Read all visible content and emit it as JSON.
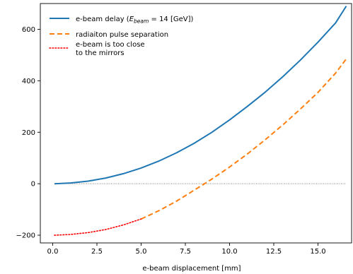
{
  "chart_data": {
    "type": "line",
    "title": "",
    "xlabel": "e-beam displacement [mm]",
    "ylabel": "",
    "xlim": [
      -0.7,
      16.9
    ],
    "ylim": [
      -230,
      700
    ],
    "x_ticks": [
      0.0,
      2.5,
      5.0,
      7.5,
      10.0,
      12.5,
      15.0
    ],
    "x_tick_labels": [
      "0.0",
      "2.5",
      "5.0",
      "7.5",
      "10.0",
      "12.5",
      "15.0"
    ],
    "y_ticks": [
      -200,
      0,
      200,
      400,
      600
    ],
    "y_tick_labels": [
      "−200",
      "0",
      "200",
      "400",
      "600"
    ],
    "grid": false,
    "legend_position": "upper-left",
    "reference_line": {
      "y": 0,
      "style": "dotted",
      "color": "#555555"
    },
    "series": [
      {
        "name": "e-beam delay (E_beam = 14 [GeV])",
        "label_parts": {
          "prefix": "e-beam delay (",
          "italic_main": "E",
          "subscript": "beam",
          "suffix": " = 14 [GeV])"
        },
        "color": "#1f77b4",
        "style": "solid",
        "x": [
          0.1,
          1.0,
          2.0,
          3.0,
          4.0,
          5.0,
          6.0,
          7.0,
          8.0,
          9.0,
          10.0,
          11.0,
          12.0,
          13.0,
          14.0,
          15.0,
          16.0,
          16.6
        ],
        "y": [
          0,
          3,
          10,
          22,
          39,
          61,
          88,
          120,
          157,
          200,
          248,
          300,
          355,
          415,
          480,
          550,
          625,
          690
        ]
      },
      {
        "name": "radiaiton pulse separation",
        "color": "#ff7f0e",
        "style": "dashed",
        "x": [
          5.0,
          6.0,
          7.0,
          8.0,
          9.0,
          10.0,
          11.0,
          12.0,
          13.0,
          14.0,
          15.0,
          16.0,
          16.6
        ],
        "y": [
          -137,
          -105,
          -68,
          -25,
          18,
          65,
          115,
          170,
          228,
          290,
          355,
          430,
          485
        ]
      },
      {
        "name": "e-beam is too close\nto the mirrors",
        "color": "#ff0000",
        "style": "dotted",
        "x": [
          0.1,
          1.0,
          2.0,
          3.0,
          4.0,
          5.0
        ],
        "y": [
          -200,
          -197,
          -190,
          -178,
          -160,
          -137
        ]
      }
    ]
  }
}
